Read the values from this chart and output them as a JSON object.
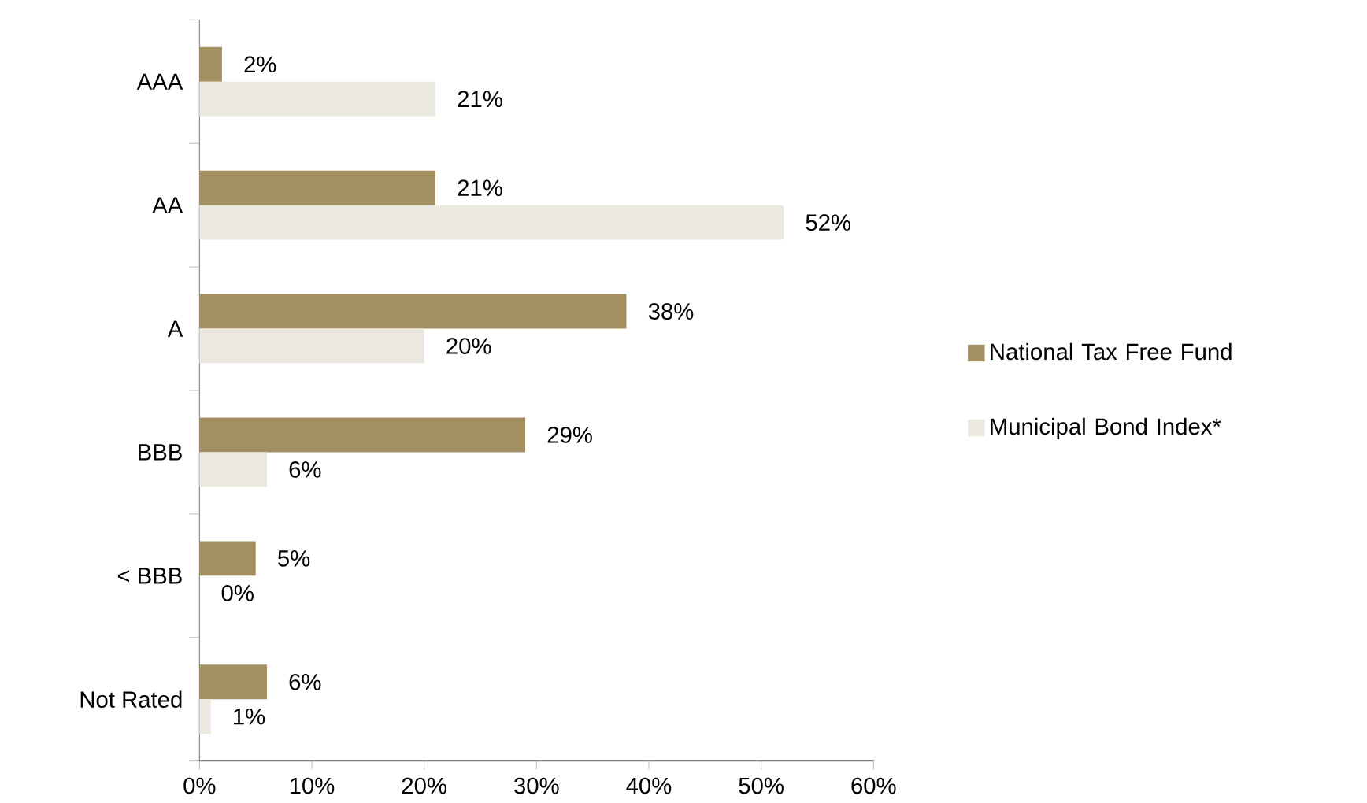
{
  "chart_data": {
    "type": "bar",
    "orientation": "horizontal",
    "categories": [
      "AAA",
      "AA",
      "A",
      "BBB",
      "< BBB",
      "Not Rated"
    ],
    "series": [
      {
        "name": "National Tax Free Fund",
        "color": "#a38f5f",
        "values": [
          2,
          21,
          38,
          29,
          5,
          6
        ],
        "value_labels": [
          "2%",
          "21%",
          "38%",
          "29%",
          "5%",
          "6%"
        ]
      },
      {
        "name": "Municipal Bond Index*",
        "color": "#ebe8df",
        "values": [
          21,
          52,
          20,
          6,
          0,
          1
        ],
        "value_labels": [
          "21%",
          "52%",
          "20%",
          "6%",
          "0%",
          "1%"
        ]
      }
    ],
    "xlim": [
      0,
      60
    ],
    "xticks": [
      {
        "value": 0,
        "label": "0%"
      },
      {
        "value": 10,
        "label": "10%"
      },
      {
        "value": 20,
        "label": "20%"
      },
      {
        "value": 30,
        "label": "30%"
      },
      {
        "value": 40,
        "label": "40%"
      },
      {
        "value": 50,
        "label": "50%"
      },
      {
        "value": 60,
        "label": "60%"
      }
    ],
    "grid": false,
    "legend": "right"
  }
}
